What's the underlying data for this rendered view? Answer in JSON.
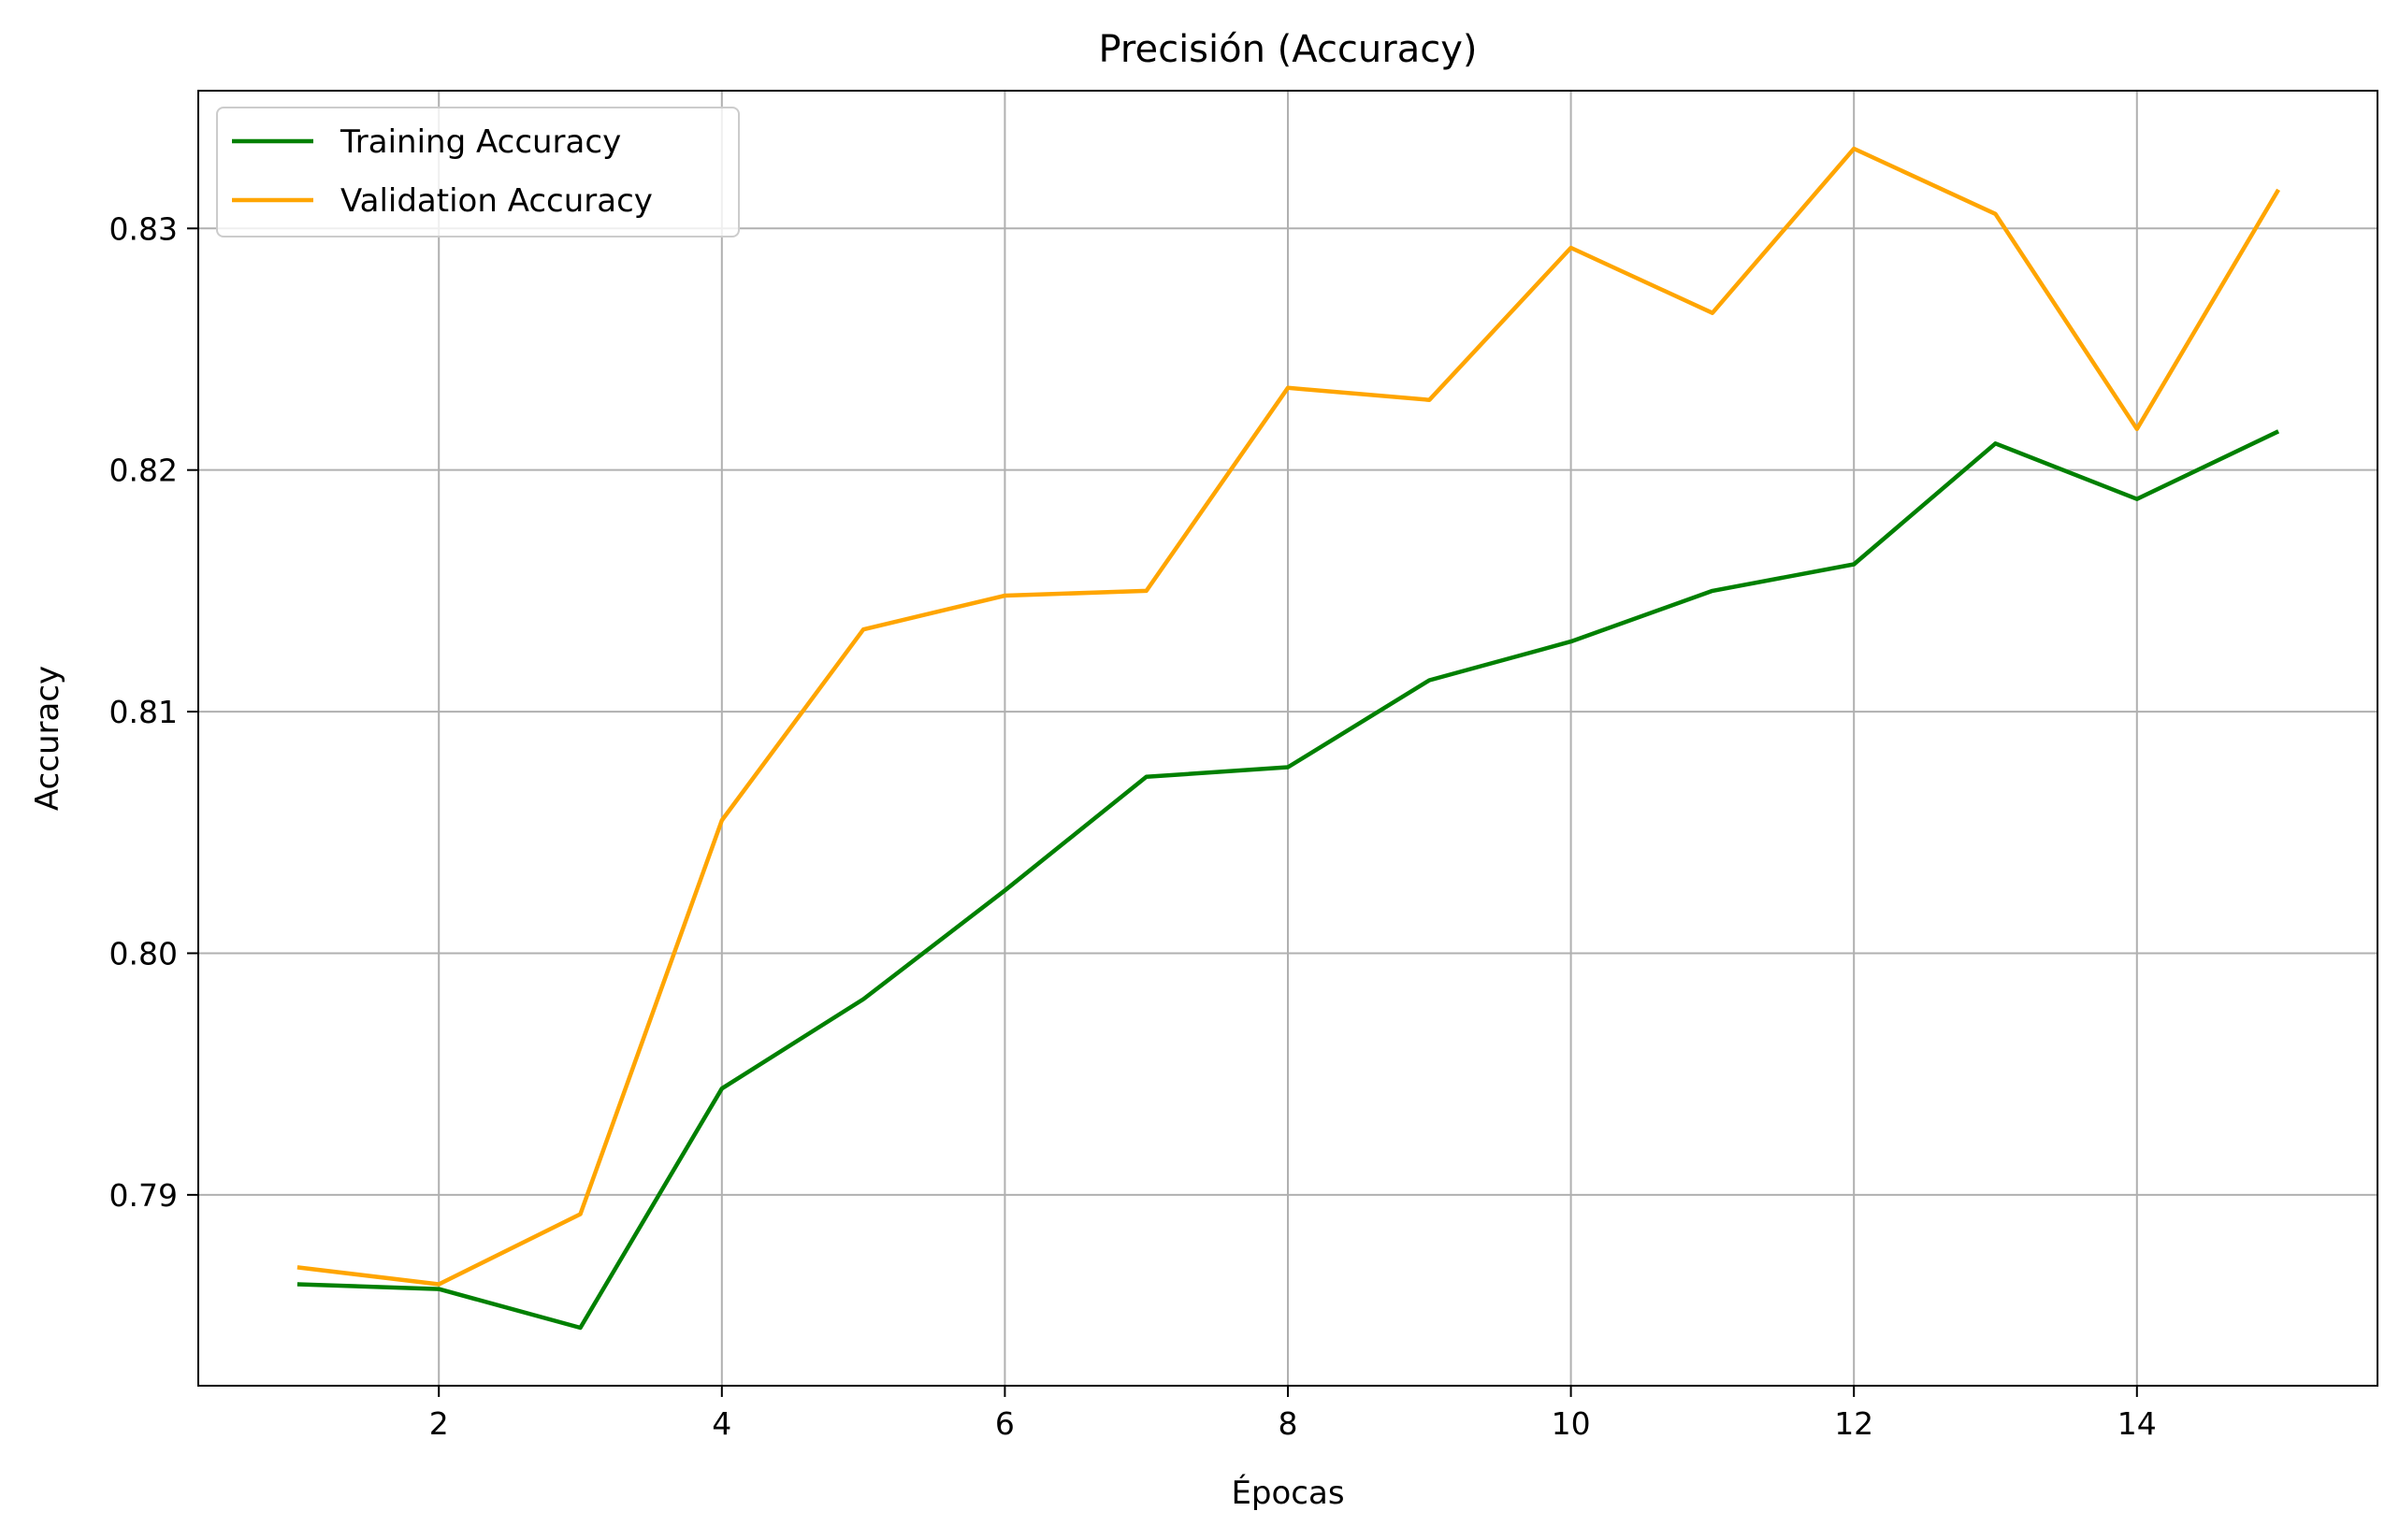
{
  "chart_data": {
    "type": "line",
    "title": "Precisión (Accuracy)",
    "xlabel": "Épocas",
    "ylabel": "Accuracy",
    "x": [
      1,
      2,
      3,
      4,
      5,
      6,
      7,
      8,
      9,
      10,
      11,
      12,
      13,
      14,
      15
    ],
    "xlim": [
      0.3,
      15.7
    ],
    "ylim": [
      0.7821,
      0.8357
    ],
    "xticks": [
      2,
      4,
      6,
      8,
      10,
      12,
      14
    ],
    "xtick_labels": [
      "2",
      "4",
      "6",
      "8",
      "10",
      "12",
      "14"
    ],
    "yticks": [
      0.79,
      0.8,
      0.81,
      0.82,
      0.83
    ],
    "ytick_labels": [
      "0.79",
      "0.80",
      "0.81",
      "0.82",
      "0.83"
    ],
    "grid": true,
    "legend_position": "upper-left",
    "series": [
      {
        "name": "Training Accuracy",
        "color": "#008000",
        "values": [
          0.7863,
          0.7861,
          0.7845,
          0.7944,
          0.7981,
          0.8026,
          0.8073,
          0.8077,
          0.8113,
          0.8129,
          0.815,
          0.8161,
          0.8211,
          0.8188,
          0.8216
        ]
      },
      {
        "name": "Validation Accuracy",
        "color": "#FFA500",
        "values": [
          0.787,
          0.7863,
          0.7892,
          0.8055,
          0.8134,
          0.8148,
          0.815,
          0.8234,
          0.8229,
          0.8292,
          0.8265,
          0.8333,
          0.8306,
          0.8217,
          0.8316
        ]
      }
    ]
  }
}
